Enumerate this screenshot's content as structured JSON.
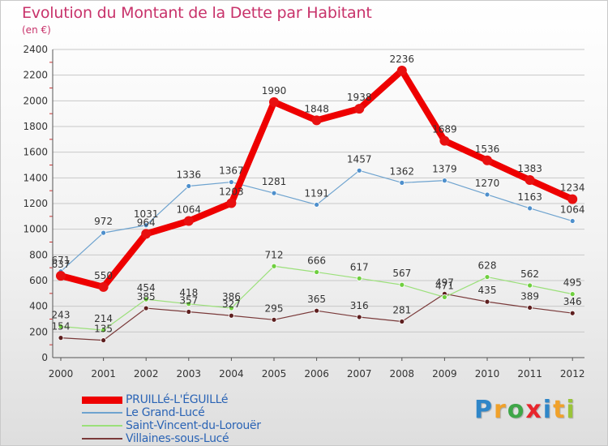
{
  "title": "Evolution du Montant de la Dette par Habitant",
  "unit_label": "(en €)",
  "brand": {
    "letters": [
      "P",
      "r",
      "o",
      "x",
      "i",
      "t",
      "i"
    ],
    "colors": [
      "#2f86c8",
      "#f0a12a",
      "#3fa648",
      "#e8262d",
      "#2f86c8",
      "#f0a12a",
      "#9ac43a"
    ]
  },
  "colors": {
    "title": "#c8326a",
    "legend_text": "#2b64b5",
    "axis": "#555555",
    "gridline": "#c8c8c8",
    "tick_mark": "#cc3333"
  },
  "chart_data": {
    "type": "line",
    "title": "Evolution du Montant de la Dette par Habitant",
    "ylabel": "(en €)",
    "xlabel": "",
    "ylim": [
      0,
      2400
    ],
    "yticks": [
      0,
      200,
      400,
      600,
      800,
      1000,
      1200,
      1400,
      1600,
      1800,
      2000,
      2200,
      2400
    ],
    "grid": true,
    "legend_position": "bottom-left",
    "categories": [
      "2000",
      "2001",
      "2002",
      "2003",
      "2004",
      "2005",
      "2006",
      "2007",
      "2008",
      "2009",
      "2010",
      "2011",
      "2012"
    ],
    "series": [
      {
        "name": "PRUILLé-L'ÉGUILLé",
        "color": "#ee0000",
        "marker": "#e81010",
        "values": [
          637,
          550,
          964,
          1064,
          1203,
          1990,
          1848,
          1938,
          2236,
          1689,
          1536,
          1383,
          1234
        ]
      },
      {
        "name": "Le Grand-Lucé",
        "color": "#6ea3cf",
        "marker": "#4d8fcc",
        "values": [
          671,
          972,
          1031,
          1336,
          1367,
          1281,
          1191,
          1457,
          1362,
          1379,
          1270,
          1163,
          1064
        ]
      },
      {
        "name": "Saint-Vincent-du-Lorouër",
        "color": "#9be07a",
        "marker": "#6fcf3f",
        "values": [
          243,
          214,
          454,
          418,
          386,
          712,
          666,
          617,
          567,
          471,
          628,
          562,
          495
        ]
      },
      {
        "name": "Villaines-sous-Lucé",
        "color": "#7a3a3a",
        "marker": "#5e1f1f",
        "values": [
          154,
          135,
          385,
          357,
          327,
          295,
          365,
          316,
          281,
          497,
          435,
          389,
          346
        ]
      }
    ]
  }
}
